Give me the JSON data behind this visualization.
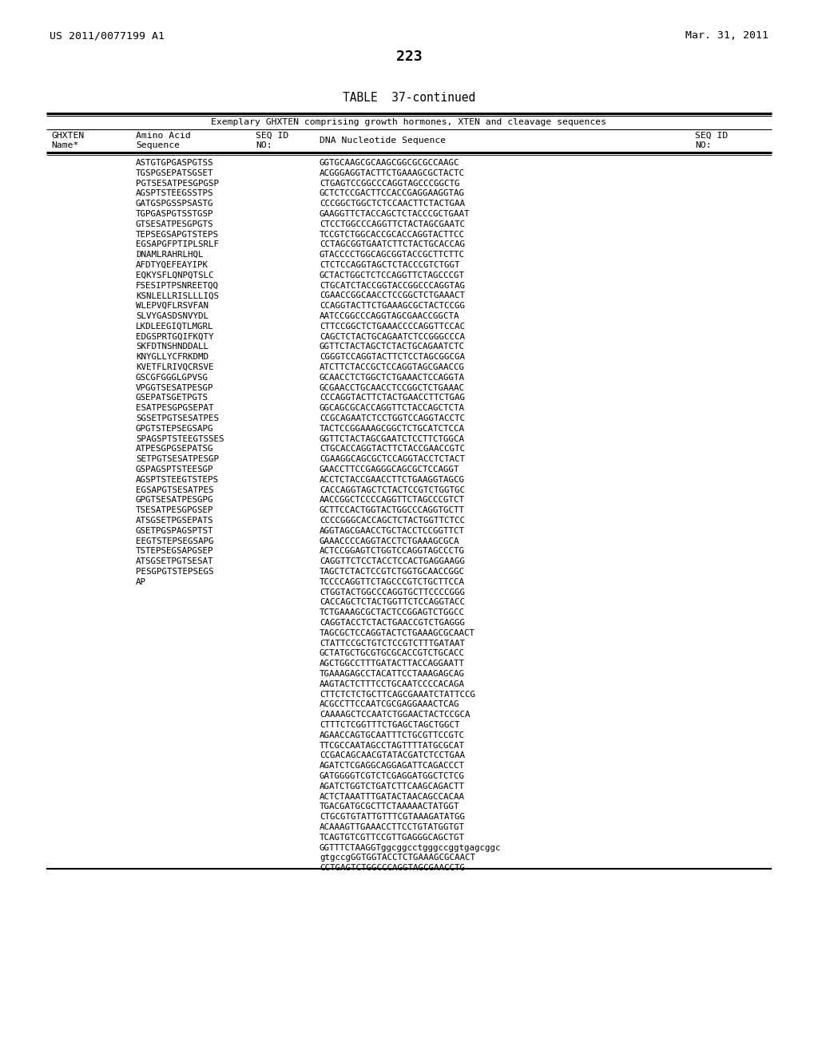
{
  "page_left_text": "US 2011/0077199 A1",
  "page_right_text": "Mar. 31, 2011",
  "page_number": "223",
  "table_title": "TABLE  37-continued",
  "table_subtitle": "Exemplary GHXTEN comprising growth hormones, XTEN and cleavage sequences",
  "col1_header1": "GHXTEN",
  "col1_header2": "Name*",
  "col2_header1": "Amino Acid",
  "col2_header2": "Sequence",
  "col3_header1": "SEQ ID",
  "col3_header2": "NO:",
  "col4_header1": "DNA Nucleotide Sequence",
  "col5_header1": "SEQ ID",
  "col5_header2": "NO:",
  "rows": [
    [
      "ASTGTGPGASPGTSS",
      "GGTGCAAGCGCAAGCGGCGCGCCAAGC"
    ],
    [
      "TGSPGSEPATSGSET",
      "ACGGGAGGTACTTCTGAAAGCGCTACTC"
    ],
    [
      "PGTSESATPESGPGSP",
      "CTGAGTCCGGCCCAGGTAGCCCGGCTG"
    ],
    [
      "AGSPTSTEEGSSTPS",
      "GCTCTCCGACTTCCACCGAGGAAGGTAG"
    ],
    [
      "GATGSPGSSPSASTG",
      "CCCGGCTGGCTCTCCAACTTCTACTGAA"
    ],
    [
      "TGPGASPGTSSTGSP",
      "GAAGGTTCTACCAGCTCTACCCGCTGAAT"
    ],
    [
      "GTSESATPESGPGTS",
      "CTCCTGGCCCAGGTTCTACTAGCGAATC"
    ],
    [
      "TEPSEGSAPGTSTEPS",
      "TCCGTCTGGCACCGCACCAGGTACTTCC"
    ],
    [
      "EGSAPGFPTIPLSRLF",
      "CCTAGCGGTGAATCTTCTACTGCACCAG"
    ],
    [
      "DNAMLRAHRLHQL",
      "GTACCCCTGGCAGCGGTACCGCTTCTTC"
    ],
    [
      "AFDTYQEFEAYIPK",
      "CTCTCCAGGTAGCTCTACCCGTCTGGT"
    ],
    [
      "EQKYSFLQNPQTSLC",
      "GCTACTGGCTCTCCAGGTTCTAGCCCGT"
    ],
    [
      "FSESIPTPSNREETQQ",
      "CTGCATCTACCGGTACCGGCCCAGGTAG"
    ],
    [
      "KSNLELLRISLLLIQS",
      "CGAACCGGCAACCTCCGGCTCTGAAACT"
    ],
    [
      "WLEPVQFLRSVFAN",
      "CCAGGTACTTCTGAAAGCGCTACTCCGG"
    ],
    [
      "SLVYGASDSNVYDL",
      "AATCCGGCCCAGGTAGCGAACCGGCTA"
    ],
    [
      "LKDLEEGIQTLMGRL",
      "CTTCCGGCTCTGAAACCCCAGGTTCCAC"
    ],
    [
      "EDGSPRTGQIFKQTY",
      "CAGCTCTACTGCAGAATCTCCGGGCCCA"
    ],
    [
      "SKFDTNSHNDDALL",
      "GGTTCTACTAGCTCTACTGCAGAATCTC"
    ],
    [
      "KNYGLLYCFRKDMD",
      "CGGGTCCAGGTACTTCTCCTAGCGGCGA"
    ],
    [
      "KVETFLRIVQCRSVE",
      "ATCTTCTACCGCTCCAGGTAGCGAACCG"
    ],
    [
      "GSCGFGGGLGPVSG",
      "GCAACCTCTGGCTCTGAAACTCCAGGTA"
    ],
    [
      "VPGGTSESATPESGP",
      "GCGAACCTGCAACCTCCGGCTCTGAAAC"
    ],
    [
      "GSEPATSGETPGTS",
      "CCCAGGTACTTCTACTGAACCTTCTGAG"
    ],
    [
      "ESATPESGPGSEPAT",
      "GGCAGCGCACCAGGTTCTACCAGCTCTA"
    ],
    [
      "SGSETPGTSESATPES",
      "CCGCAGAATCTCCTGGTCCAGGTACCTC"
    ],
    [
      "GPGTSTEPSEGSAPG",
      "TACTCCGGAAAGCGGCTCTGCATCTCCA"
    ],
    [
      "SPAGSPTSTEEGTSSES",
      "GGTTCTACTAGCGAATCTCCTTCTGGCA"
    ],
    [
      "ATPESGPGSEPATSG",
      "CTGCACCAGGTACTTCTACCGAACCGTC"
    ],
    [
      "SETPGTSESATPESGP",
      "CGAAGGCAGCGCTCCAGGTACCTCTACT"
    ],
    [
      "GSPAGSPTSTEESGP",
      "GAACCTTCCGAGGGCAGCGCTCCAGGT"
    ],
    [
      "AGSPTSTEEGTSTEPS",
      "ACCTCTACCGAACCTTCTGAAGGTAGCG"
    ],
    [
      "EGSAPGTSESATPES",
      "CACCAGGTAGCTCTACTCCGTCTGGTGC"
    ],
    [
      "GPGTSESATPESGPG",
      "AACCGGCTCCCCAGGTTCTAGCCCGTCT"
    ],
    [
      "TSESATPESGPGSEP",
      "GCTTCCACTGGTACTGGCCCAGGTGCTT"
    ],
    [
      "ATSGSETPGSEPATS",
      "CCCCGGGCACCAGCTCTACTGGTTCTCC"
    ],
    [
      "GSETPGSPAGSPTST",
      "AGGTAGCGAACCTGCTACCTCCGGTTCT"
    ],
    [
      "EEGTSTEPSEGSAPG",
      "GAAACCCCAGGTACCTCTGAAAGCGCA"
    ],
    [
      "TSTEPSEGSAPGSEP",
      "ACTCCGGAGTCTGGTCCAGGTAGCCCTG"
    ],
    [
      "ATSGSETPGTSESAT",
      "CAGGTTCTCCTACCTCCACTGAGGAAGG"
    ],
    [
      "PESGPGTSTEPSEGS",
      "TAGCTCTACTCCGTCTGGTGCAACCGGC"
    ],
    [
      "AP",
      "TCCCCAGGTTCTAGCCCGTCTGCTTCCA",
      "CTGGTACTGGCCCAGGTGCTTCCCCGGG",
      "CACCAGCTCTACTGGTTCTCCAGGTACC",
      "TCTGAAAGCGCTACTCCGGAGTCTGGCC",
      "CAGGTACCTCTACTGAACCGTCTGAGGG",
      "TAGCGCTCCAGGTACTCTGAAAGCGCAACT",
      "CTATTCCGCTGTCTCCGTCTTTGATAAT",
      "GCTATGCTGCGTGCGCACCGTCTGCACC",
      "AGCTGGCCTTTGATACTTACCAGGAATT",
      "TGAAAGAGCCTACATTCCTAAAGAGCAG",
      "AAGTACTCTTTCCTGCAATCCCCACAGA",
      "CTTCTCTCTGCTTCAGCGAAATCTATTCCG",
      "ACGCCTTCCAATCGCGAGGAAACTCAG",
      "CAAAAGCTCCAATCTGGAACTACTCCGCA",
      "CTTTCTCGGTTTCTGAGCTAGCTGGCT",
      "AGAACCAGTGCAATTTCTGCGTTCCGTC",
      "TTCGCCAATAGCCTAGTTTTATGCGCAT",
      "CCGACAGCAACGTATACGATCTCCTGAA",
      "AGATCTCGAGGCAGGAGATTCAGACCCT",
      "GATGGGGTCGTCTCGAGGATGGCTCTCG",
      "AGATCTGGTCTGATCTTCAAGCAGACTT",
      "ACTCTAAATTTGATACTAACAGCCACAA",
      "TGACGATGCGCTTCTAAAAACTATGGT",
      "CTGCGTGTATTGTTTCGTAAAGATATGG",
      "ACAAAGTTGAAACCTTCCTGTATGGTGT",
      "TCAGTGTCGTTCCGTTGAGGGCAGCTGT",
      "GGTTTCTAAGGTggcggcctgggccggtgagcggc",
      "gtgccgGGTGGTACCTCTGAAAGCGCAACT",
      "CCTGAGTCTGGCCCAGGTAGCGAACCTG"
    ]
  ],
  "background_color": "#ffffff",
  "text_color": "#000000"
}
